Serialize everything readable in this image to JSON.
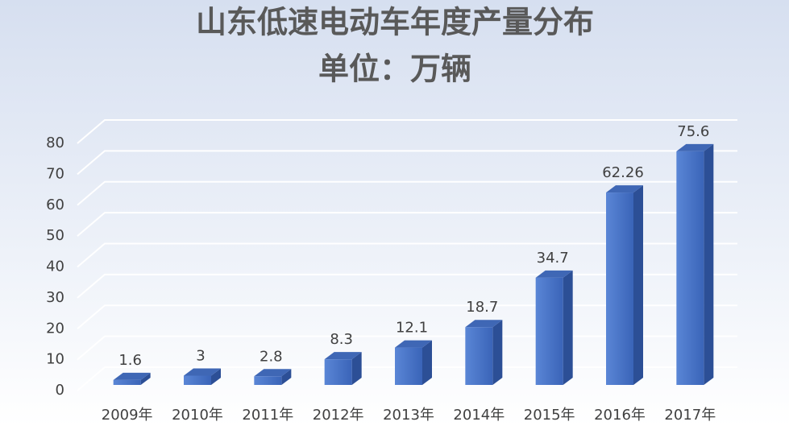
{
  "chart_data": {
    "type": "bar3d",
    "title": "山东低速电动车年度产量分布",
    "subtitle": "单位：万辆",
    "categories": [
      "2009年",
      "2010年",
      "2011年",
      "2012年",
      "2013年",
      "2014年",
      "2015年",
      "2016年",
      "2017年"
    ],
    "values": [
      1.6,
      3,
      2.8,
      8.3,
      12.1,
      18.7,
      34.7,
      62.26,
      75.6
    ],
    "color": "#4472c4",
    "ylim": [
      0,
      80
    ],
    "yticks": [
      0,
      10,
      20,
      30,
      40,
      50,
      60,
      70,
      80
    ],
    "grid": true
  }
}
